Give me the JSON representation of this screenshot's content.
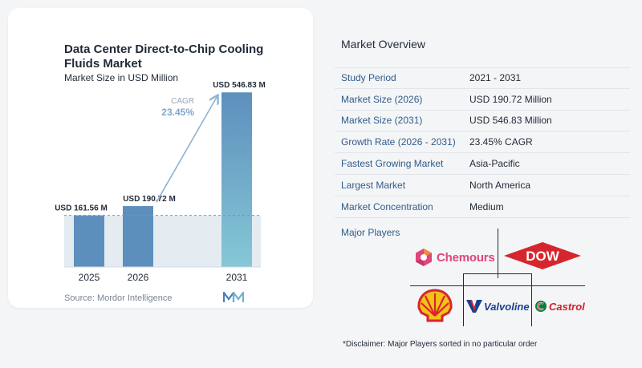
{
  "chart_data": {
    "type": "bar",
    "title": "Data Center Direct-to-Chip Cooling Fluids Market",
    "subtitle": "Market Size in USD Million",
    "categories": [
      "2025",
      "2026",
      "2031"
    ],
    "values": [
      161.56,
      190.72,
      546.83
    ],
    "value_labels": [
      "USD 161.56 M",
      "USD 190.72 M",
      "USD 546.83 M"
    ],
    "cagr_label": "CAGR",
    "cagr_value": "23.45%",
    "bar_colors": [
      "#5d8fbd",
      "#5d8fbd",
      "#7fbfd3"
    ],
    "ylim": [
      0,
      560
    ]
  },
  "source": "Source:  Mordor Intelligence",
  "overview": {
    "title": "Market Overview",
    "rows": [
      {
        "key": "Study Period",
        "value": "2021 - 2031"
      },
      {
        "key": "Market Size (2026)",
        "value": "USD 190.72 Million"
      },
      {
        "key": "Market Size (2031)",
        "value": "USD 546.83 Million"
      },
      {
        "key": "Growth Rate (2026 - 2031)",
        "value": "23.45% CAGR"
      },
      {
        "key": "Fastest Growing Market",
        "value": "Asia-Pacific"
      },
      {
        "key": "Largest Market",
        "value": "North America"
      },
      {
        "key": "Market Concentration",
        "value": "Medium"
      }
    ]
  },
  "players": {
    "title": "Major Players",
    "logos": [
      "Chemours",
      "DOW",
      "Shell",
      "Valvoline",
      "Castrol"
    ]
  },
  "disclaimer": "*Disclaimer: Major Players sorted in no particular order"
}
